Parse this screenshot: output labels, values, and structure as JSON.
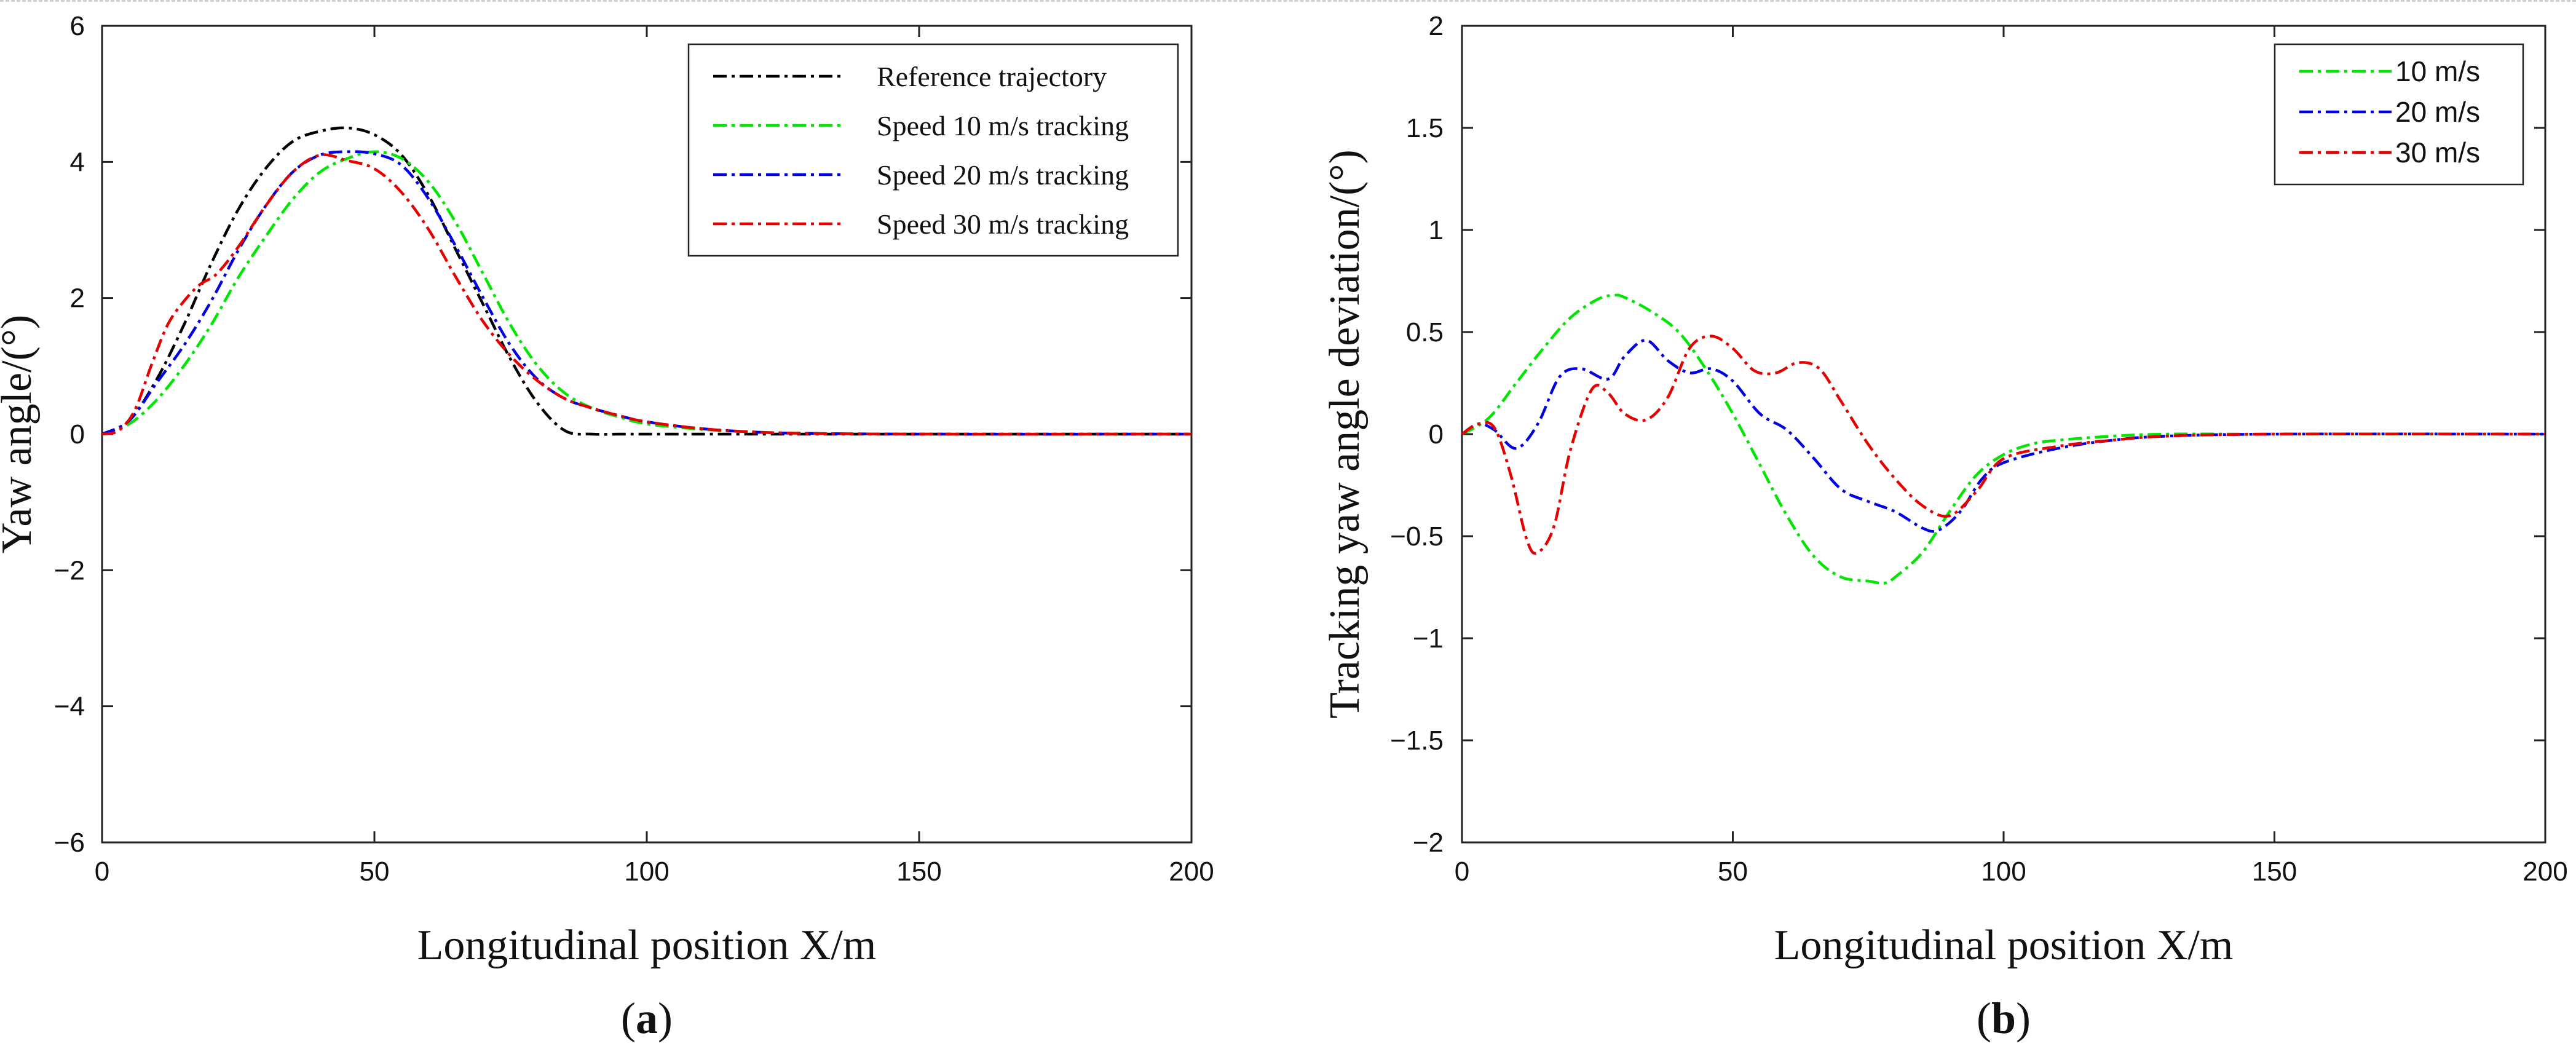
{
  "chart_data": [
    {
      "type": "line",
      "panel_label": {
        "open": "(",
        "letter": "a",
        "close": ")"
      },
      "title": "",
      "xlabel": "Longitudinal position X/m",
      "ylabel": "Yaw angle/(°)",
      "xlim": [
        0,
        200
      ],
      "ylim": [
        -6,
        6
      ],
      "xticks": [
        0,
        50,
        100,
        150,
        200
      ],
      "xtick_labels": [
        "0",
        "50",
        "100",
        "150",
        "200"
      ],
      "yticks": [
        -6,
        -4,
        -2,
        0,
        2,
        4,
        6
      ],
      "ytick_labels": [
        "−6",
        "−4",
        "−2",
        "0",
        "2",
        "4",
        "6"
      ],
      "grid": false,
      "legend_position": "top-right",
      "series": [
        {
          "name": "Reference trajectory",
          "color": "#000000",
          "x": [
            0,
            5,
            10,
            15,
            20,
            25,
            30,
            35,
            40,
            45,
            50,
            55,
            60,
            65,
            70,
            75,
            80,
            85,
            90,
            95,
            100,
            120,
            150,
            200
          ],
          "y": [
            0,
            0.2,
            0.8,
            1.6,
            2.5,
            3.3,
            3.9,
            4.3,
            4.45,
            4.5,
            4.4,
            4.1,
            3.5,
            2.7,
            1.9,
            1.1,
            0.45,
            0.05,
            0,
            0,
            0,
            0,
            0,
            0
          ]
        },
        {
          "name": "Speed 10 m/s tracking",
          "color": "#00e600",
          "x": [
            0,
            5,
            10,
            15,
            20,
            25,
            30,
            35,
            40,
            45,
            50,
            55,
            60,
            65,
            70,
            75,
            80,
            85,
            90,
            95,
            100,
            110,
            120,
            130,
            150,
            200
          ],
          "y": [
            0,
            0.15,
            0.5,
            1.0,
            1.6,
            2.3,
            2.9,
            3.45,
            3.85,
            4.05,
            4.15,
            4.05,
            3.7,
            3.1,
            2.35,
            1.6,
            1.0,
            0.6,
            0.38,
            0.25,
            0.15,
            0.07,
            0.03,
            0.01,
            0,
            0
          ]
        },
        {
          "name": "Speed 20 m/s tracking",
          "color": "#0000e6",
          "x": [
            0,
            5,
            10,
            15,
            20,
            25,
            30,
            35,
            40,
            45,
            50,
            55,
            60,
            65,
            70,
            75,
            80,
            85,
            90,
            95,
            100,
            110,
            120,
            130,
            150,
            200
          ],
          "y": [
            0,
            0.2,
            0.75,
            1.3,
            1.95,
            2.7,
            3.35,
            3.85,
            4.1,
            4.15,
            4.12,
            3.95,
            3.45,
            2.75,
            2.0,
            1.3,
            0.8,
            0.52,
            0.38,
            0.27,
            0.18,
            0.08,
            0.03,
            0.01,
            0,
            0
          ]
        },
        {
          "name": "Speed 30 m/s tracking",
          "color": "#e60000",
          "x": [
            0,
            3,
            6,
            9,
            12,
            15,
            18,
            21,
            25,
            30,
            35,
            40,
            45,
            50,
            55,
            60,
            65,
            70,
            75,
            80,
            85,
            90,
            95,
            100,
            110,
            120,
            130,
            150,
            200
          ],
          "y": [
            0,
            0.05,
            0.35,
            1.0,
            1.6,
            1.95,
            2.2,
            2.35,
            2.75,
            3.35,
            3.85,
            4.1,
            4.02,
            3.9,
            3.55,
            3.0,
            2.3,
            1.65,
            1.15,
            0.78,
            0.52,
            0.38,
            0.27,
            0.18,
            0.08,
            0.03,
            0.01,
            0,
            0
          ]
        }
      ]
    },
    {
      "type": "line",
      "panel_label": {
        "open": "(",
        "letter": "b",
        "close": ")"
      },
      "title": "",
      "xlabel": "Longitudinal position X/m",
      "ylabel": "Tracking yaw angle deviation/(°)",
      "xlim": [
        0,
        200
      ],
      "ylim": [
        -2,
        2
      ],
      "xticks": [
        0,
        50,
        100,
        150,
        200
      ],
      "xtick_labels": [
        "0",
        "50",
        "100",
        "150",
        "200"
      ],
      "yticks": [
        -2,
        -1.5,
        -1,
        -0.5,
        0,
        0.5,
        1,
        1.5,
        2
      ],
      "ytick_labels": [
        "−2",
        "−1.5",
        "−1",
        "−0.5",
        "0",
        "0.5",
        "1",
        "1.5",
        "2"
      ],
      "grid": false,
      "legend_position": "top-right",
      "series": [
        {
          "name": "10 m/s",
          "color": "#00e600",
          "x": [
            0,
            5,
            10,
            15,
            20,
            25,
            28,
            30,
            35,
            40,
            45,
            50,
            55,
            60,
            65,
            70,
            75,
            78,
            80,
            85,
            90,
            95,
            100,
            105,
            110,
            120,
            130,
            150,
            200
          ],
          "y": [
            0,
            0.08,
            0.25,
            0.42,
            0.57,
            0.66,
            0.68,
            0.67,
            0.6,
            0.5,
            0.32,
            0.1,
            -0.15,
            -0.4,
            -0.6,
            -0.7,
            -0.72,
            -0.73,
            -0.7,
            -0.58,
            -0.38,
            -0.2,
            -0.1,
            -0.05,
            -0.03,
            -0.01,
            0,
            0,
            0
          ]
        },
        {
          "name": "20 m/s",
          "color": "#0000e6",
          "x": [
            0,
            3,
            6,
            10,
            14,
            18,
            22,
            27,
            30,
            34,
            38,
            42,
            46,
            50,
            55,
            60,
            65,
            70,
            75,
            80,
            85,
            88,
            92,
            96,
            100,
            110,
            120,
            130,
            150,
            200
          ],
          "y": [
            0,
            0.05,
            0.02,
            -0.07,
            0.05,
            0.28,
            0.32,
            0.27,
            0.38,
            0.46,
            0.36,
            0.3,
            0.32,
            0.26,
            0.1,
            0.02,
            -0.12,
            -0.27,
            -0.33,
            -0.38,
            -0.46,
            -0.47,
            -0.38,
            -0.22,
            -0.14,
            -0.07,
            -0.03,
            -0.01,
            0,
            0
          ]
        },
        {
          "name": "30 m/s",
          "color": "#e60000",
          "x": [
            0,
            3,
            6,
            9,
            12,
            14,
            17,
            20,
            24,
            27,
            30,
            34,
            38,
            42,
            46,
            50,
            54,
            58,
            62,
            66,
            70,
            75,
            80,
            85,
            90,
            95,
            100,
            110,
            120,
            130,
            150,
            200
          ],
          "y": [
            0,
            0.05,
            0.03,
            -0.2,
            -0.52,
            -0.58,
            -0.45,
            -0.08,
            0.22,
            0.2,
            0.1,
            0.07,
            0.18,
            0.42,
            0.48,
            0.42,
            0.31,
            0.3,
            0.35,
            0.32,
            0.16,
            -0.05,
            -0.22,
            -0.35,
            -0.4,
            -0.28,
            -0.12,
            -0.06,
            -0.03,
            -0.01,
            0,
            0
          ]
        }
      ]
    }
  ]
}
